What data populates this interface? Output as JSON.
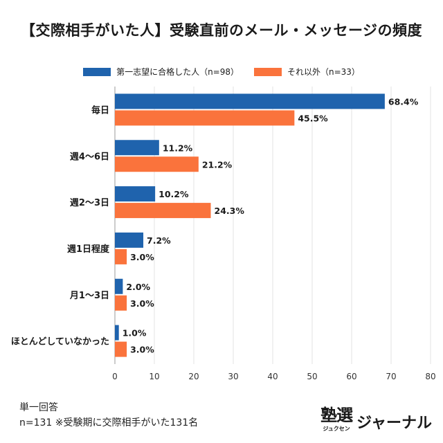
{
  "header": {
    "title": "【交際相手がいた人】受験直前のメール・メッセージの頻度"
  },
  "notes": {
    "line1": "単一回答",
    "line2": "n=131 ※受験期に交際相手がいた131名"
  },
  "brand": {
    "kanji": "塾選",
    "kana": "ジュクセン",
    "word": "ジャーナル"
  },
  "chart_data": {
    "type": "bar",
    "orientation": "horizontal",
    "categories": [
      "毎日",
      "週4〜6日",
      "週2〜3日",
      "週1日程度",
      "月1〜3日",
      "ほとんどしていなかった"
    ],
    "series": [
      {
        "name": "第一志望に合格した人（n=98）",
        "color": "#1f63ad",
        "values": [
          68.4,
          11.2,
          10.2,
          7.2,
          2.0,
          1.0
        ],
        "labels": [
          "68.4%",
          "11.2%",
          "10.2%",
          "7.2%",
          "2.0%",
          "1.0%"
        ]
      },
      {
        "name": "それ以外（n=33）",
        "color": "#fa733c",
        "values": [
          45.5,
          21.2,
          24.3,
          3.0,
          3.0,
          3.0
        ],
        "labels": [
          "45.5%",
          "21.2%",
          "24.3%",
          "3.0%",
          "3.0%",
          "3.0%"
        ]
      }
    ],
    "xlim": [
      0,
      80
    ],
    "xticks": [
      "0",
      "10",
      "20",
      "30",
      "40",
      "50",
      "60",
      "70",
      "80"
    ],
    "grid": true,
    "legend_position": "top"
  }
}
